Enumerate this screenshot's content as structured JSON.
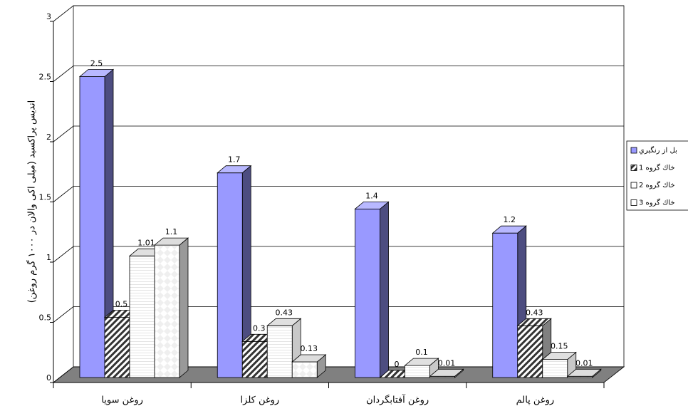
{
  "chart_data": {
    "type": "bar",
    "y_label": "اندیس پراکسید (میلی اکی والان در ۱۰۰۰ گرم روغن)",
    "categories": [
      "روغن سويا",
      "روغن كلزا",
      "روغن آفتابگردان",
      "روغن پالم"
    ],
    "series": [
      {
        "name": "بل از رنگبري",
        "color": "#9999ff",
        "values": [
          2.5,
          1.7,
          1.4,
          1.2
        ]
      },
      {
        "name": "خاك گروه 1",
        "color": "#333333",
        "values": [
          0.5,
          0.3,
          0,
          0.43
        ]
      },
      {
        "name": "خاك گروه 2",
        "color": "#ffffff",
        "values": [
          1.01,
          0.43,
          0.1,
          0.15
        ]
      },
      {
        "name": "خاك گروه 3",
        "color": "#ffffff",
        "values": [
          1.1,
          0.13,
          0.01,
          0.01
        ]
      }
    ],
    "ylim": [
      0,
      3
    ],
    "yticks": [
      0,
      0.5,
      1,
      1.5,
      2,
      2.5,
      3
    ],
    "grid": true,
    "legend": "right"
  }
}
